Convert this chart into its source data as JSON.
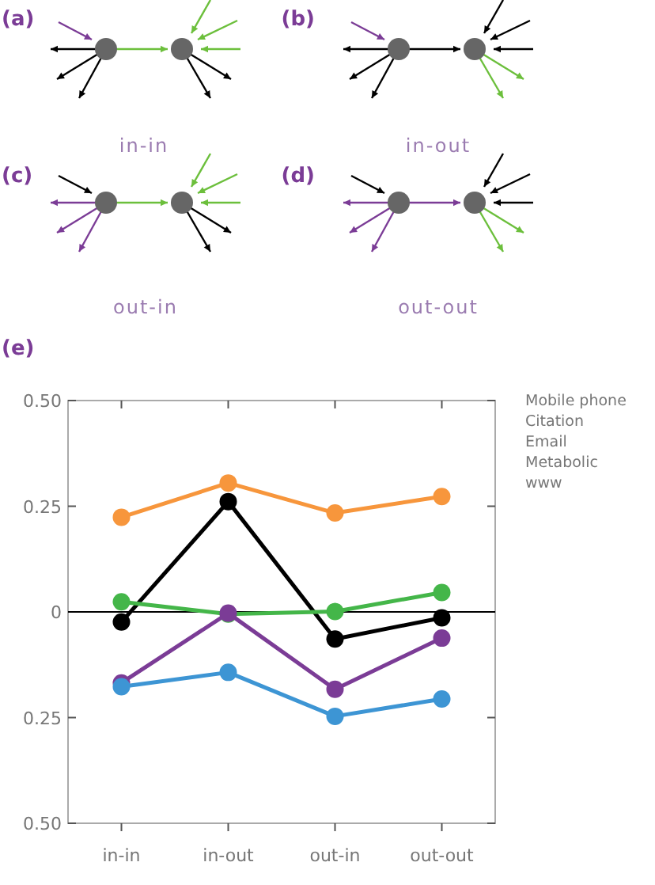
{
  "chart_data": {
    "type": "line",
    "categories": [
      "in-in",
      "in-out",
      "out-in",
      "out-out"
    ],
    "series": [
      {
        "color": "#f7963c",
        "values": [
          0.224,
          0.305,
          0.234,
          0.273
        ]
      },
      {
        "color": "#000000",
        "values": [
          -0.024,
          0.261,
          -0.064,
          -0.014
        ]
      },
      {
        "color": "#44b649",
        "values": [
          0.024,
          -0.005,
          0.001,
          0.046
        ]
      },
      {
        "color": "#7b3c96",
        "values": [
          -0.168,
          -0.003,
          -0.183,
          -0.062
        ]
      },
      {
        "color": "#3d95d4",
        "values": [
          -0.177,
          -0.143,
          -0.247,
          -0.206
        ]
      }
    ],
    "ylim": [
      -0.5,
      0.5
    ],
    "yticks": [
      {
        "value": -0.5,
        "label": "0.50"
      },
      {
        "value": -0.25,
        "label": "0.25"
      },
      0,
      0.25,
      {
        "value": 0.5,
        "label": "0.50"
      }
    ],
    "ref_lines": [
      {
        "axis": "y",
        "value": 0,
        "color": "#000000"
      }
    ],
    "marker": "circle",
    "grid": false,
    "annotations": [
      "(a)",
      "in-in",
      "(b)",
      "in-out",
      "(c)",
      "out-in",
      "(d)",
      "out-out",
      "(e)",
      "Mobile phone",
      "Citation",
      "Email",
      "Metabolic",
      "www"
    ]
  }
}
